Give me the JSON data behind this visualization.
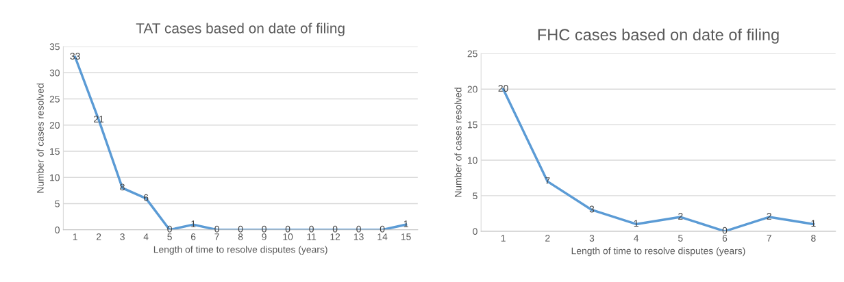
{
  "chart_data": [
    {
      "type": "line",
      "title": "TAT cases based on date of filing",
      "xlabel": "Length of time to resolve disputes (years)",
      "ylabel": "Number of cases resolved",
      "categories": [
        "1",
        "2",
        "3",
        "4",
        "5",
        "6",
        "7",
        "8",
        "9",
        "10",
        "11",
        "12",
        "13",
        "14",
        "15"
      ],
      "series": [
        {
          "color": "#5b9bd5",
          "values": [
            33,
            21,
            8,
            6,
            0,
            1,
            0,
            0,
            0,
            0,
            0,
            0,
            0,
            0,
            1
          ]
        }
      ],
      "ylim": [
        0,
        35
      ],
      "yticks": [
        0,
        5,
        10,
        15,
        20,
        25,
        30,
        35
      ],
      "grid": "y",
      "data_labels": true,
      "marker": "none",
      "line_style": "solid"
    },
    {
      "type": "line",
      "title": "FHC cases based on date of filing",
      "xlabel": "Length of time to resolve disputes (years)",
      "ylabel": "Number of cases resolved",
      "categories": [
        "1",
        "2",
        "3",
        "4",
        "5",
        "6",
        "7",
        "8"
      ],
      "series": [
        {
          "color": "#5b9bd5",
          "values": [
            20,
            7,
            3,
            1,
            2,
            0,
            2,
            1
          ]
        }
      ],
      "ylim": [
        0,
        25
      ],
      "yticks": [
        0,
        5,
        10,
        15,
        20,
        25
      ],
      "grid": "y",
      "data_labels": true,
      "marker": "none",
      "line_style": "solid"
    }
  ]
}
